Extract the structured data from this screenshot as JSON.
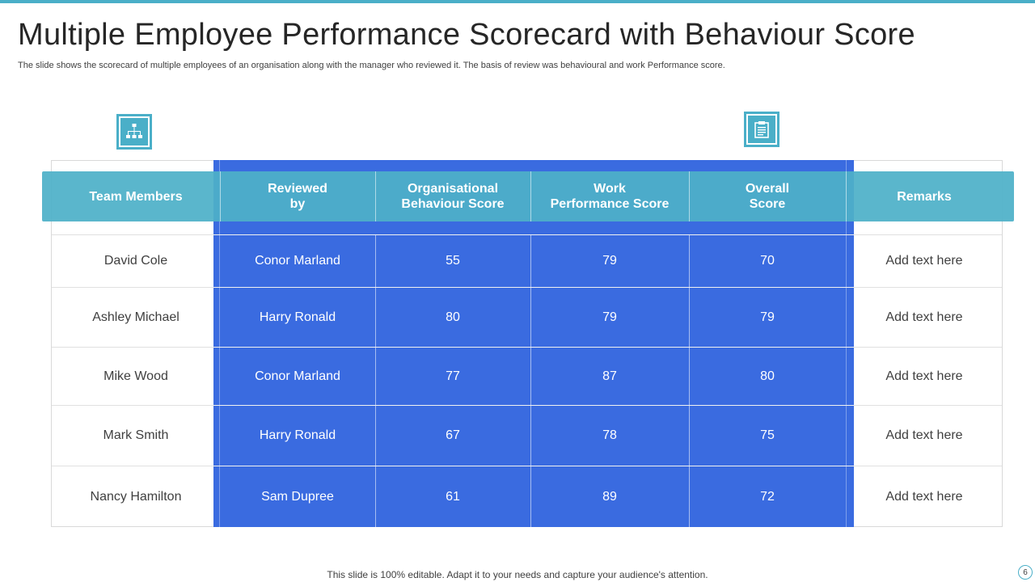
{
  "title": "Multiple Employee Performance Scorecard with Behaviour Score",
  "subtitle": "The slide shows the scorecard of multiple employees of an organisation along with the manager who reviewed it. The basis of review was behavioural and work Performance score.",
  "icons": {
    "left": "org-chart-icon",
    "right": "clipboard-icon"
  },
  "colors": {
    "accent": "#4aafc8",
    "blue": "#3a6be0",
    "header": "#4db0c8"
  },
  "table": {
    "headers": [
      "Team Members",
      "Reviewed\nby",
      "Organisational\nBehaviour Score",
      "Work\nPerformance Score",
      "Overall\nScore",
      "Remarks"
    ],
    "rows": [
      {
        "member": "David Cole",
        "reviewer": "Conor Marland",
        "behaviour": "55",
        "work": "79",
        "overall": "70",
        "remarks": "Add text here"
      },
      {
        "member": "Ashley Michael",
        "reviewer": "Harry Ronald",
        "behaviour": "80",
        "work": "79",
        "overall": "79",
        "remarks": "Add text here"
      },
      {
        "member": "Mike Wood",
        "reviewer": "Conor Marland",
        "behaviour": "77",
        "work": "87",
        "overall": "80",
        "remarks": "Add text here"
      },
      {
        "member": "Mark Smith",
        "reviewer": "Harry Ronald",
        "behaviour": "67",
        "work": "78",
        "overall": "75",
        "remarks": "Add text here"
      },
      {
        "member": "Nancy Hamilton",
        "reviewer": "Sam Dupree",
        "behaviour": "61",
        "work": "89",
        "overall": "72",
        "remarks": "Add text here"
      }
    ]
  },
  "footer": "This slide is 100% editable. Adapt it to your needs and capture your audience's attention.",
  "page_number": "6"
}
